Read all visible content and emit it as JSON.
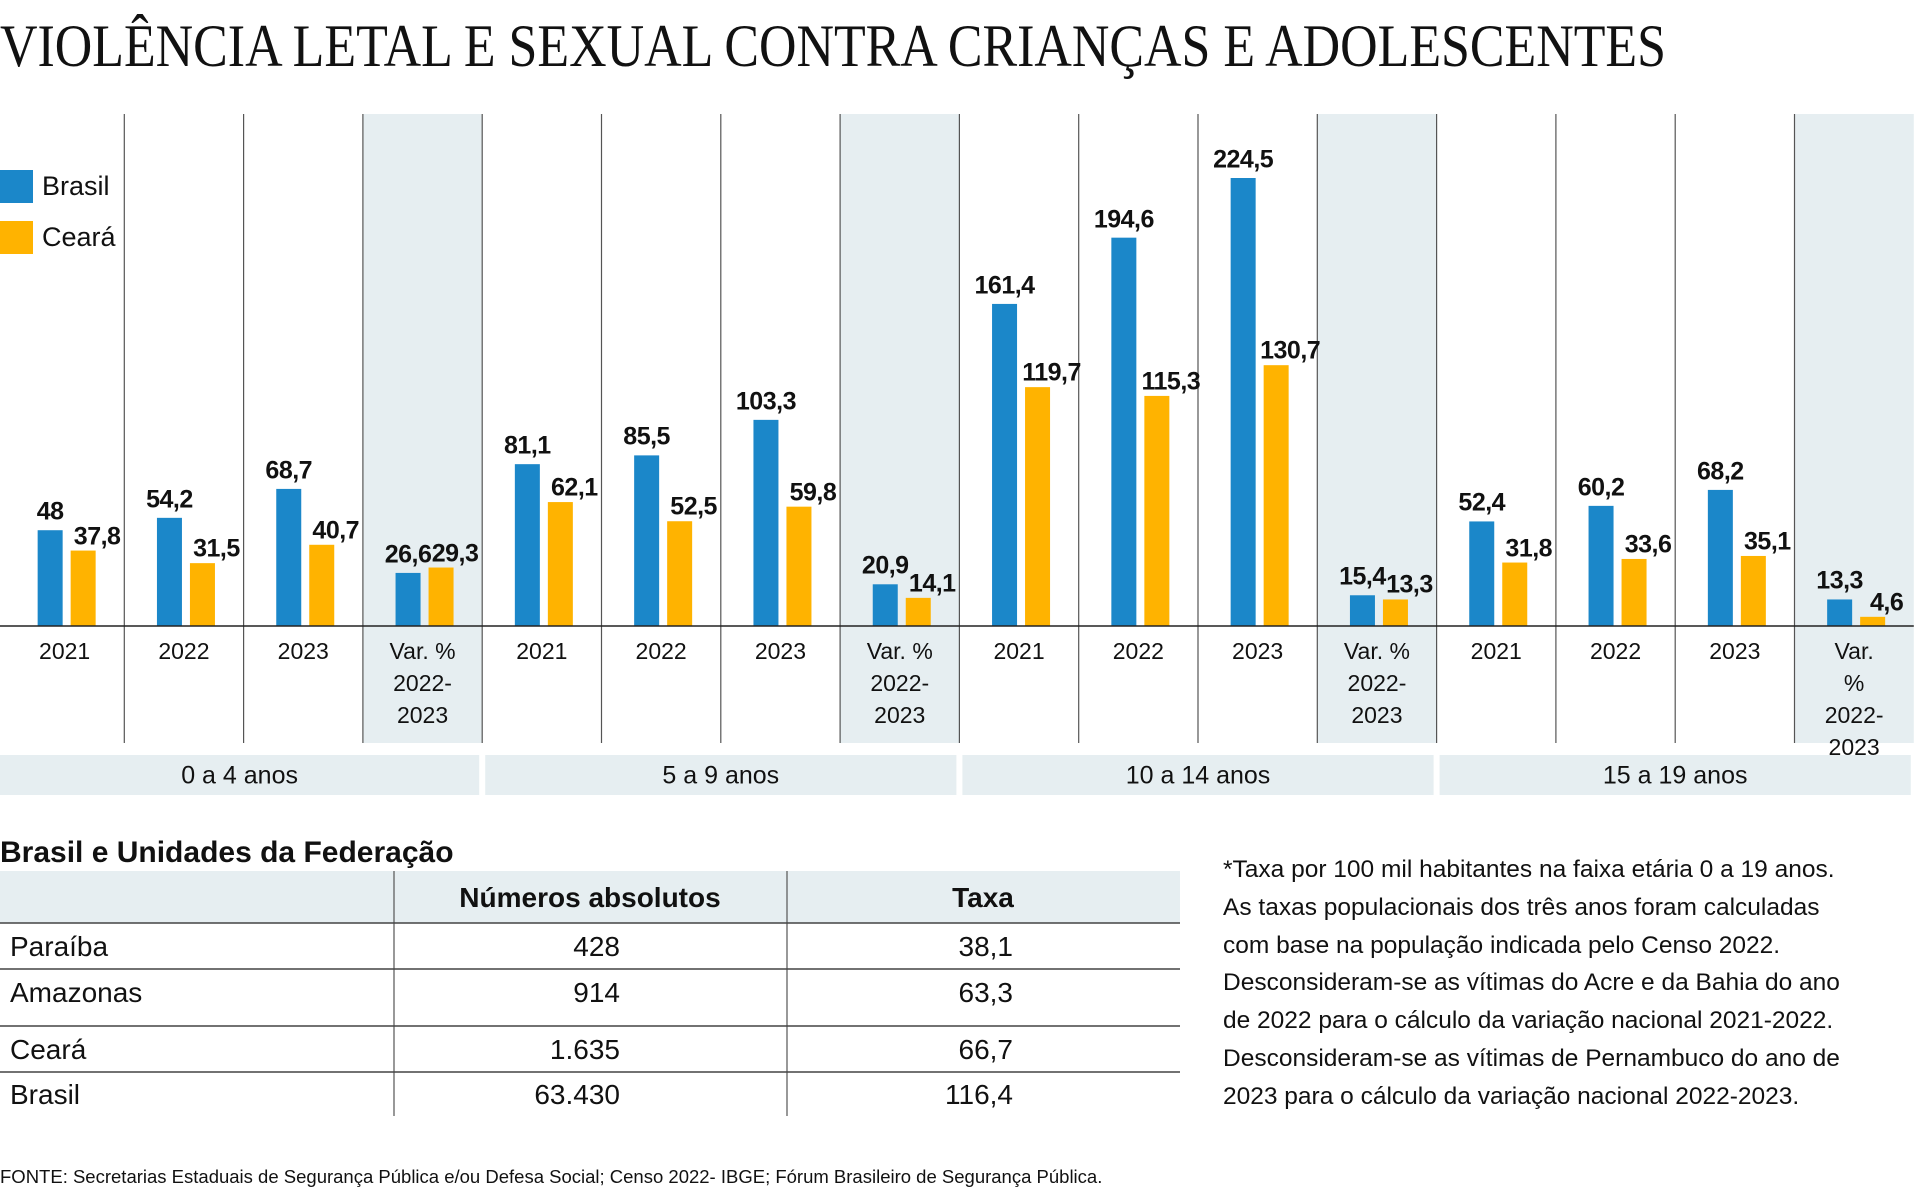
{
  "chart_data": {
    "type": "bar",
    "title": "VIOLÊNCIA LETAL E SEXUAL CONTRA CRIANÇAS E ADOLESCENTES",
    "categories": [
      "2021",
      "2022",
      "2023",
      "Var. %\n2022-\n2023",
      "2021",
      "2022",
      "2023",
      "Var. %\n2022-\n2023",
      "2021",
      "2022",
      "2023",
      "Var. %\n2022-\n2023",
      "2021",
      "2022",
      "2023",
      "Var. %\n2022-\n2023"
    ],
    "groups": [
      "0 a 4 anos",
      "5 a 9 anos",
      "10 a 14 anos",
      "15 a 19 anos"
    ],
    "series": [
      {
        "name": "Brasil",
        "color": "#1b87c9",
        "values": [
          48,
          54.2,
          68.7,
          26.6,
          81.1,
          85.5,
          103.3,
          20.9,
          161.4,
          194.6,
          224.5,
          15.4,
          52.4,
          60.2,
          68.2,
          13.3
        ],
        "value_labels": [
          "48",
          "54,2",
          "68,7",
          "26,6",
          "81,1",
          "85,5",
          "103,3",
          "20,9",
          "161,4",
          "194,6",
          "224,5",
          "15,4",
          "52,4",
          "60,2",
          "68,2",
          "13,3"
        ]
      },
      {
        "name": "Ceará",
        "color": "#ffb300",
        "values": [
          37.8,
          31.5,
          40.7,
          29.3,
          62.1,
          52.5,
          59.8,
          14.1,
          119.7,
          115.3,
          130.7,
          13.3,
          31.8,
          33.6,
          35.1,
          4.6
        ],
        "value_labels": [
          "37,8",
          "31,5",
          "40,7",
          "29,3",
          "62,1",
          "52,5",
          "59,8",
          "14,1",
          "119,7",
          "115,3",
          "130,7",
          "13,3",
          "31,8",
          "33,6",
          "35,1",
          "4,6"
        ]
      }
    ]
  },
  "table": {
    "title": "Brasil e Unidades da Federação",
    "header": [
      "Números absolutos",
      "Taxa"
    ],
    "rows": [
      [
        "Paraíba",
        "428",
        "38,1"
      ],
      [
        "Amazonas",
        "914",
        "63,3"
      ],
      [
        "Ceará",
        "1.635",
        "66,7"
      ],
      [
        "Brasil",
        "63.430",
        "116,4"
      ]
    ]
  },
  "notes": [
    "*Taxa por 100 mil habitantes na faixa etária 0 a 19 anos.",
    "As taxas populacionais dos três anos foram calculadas",
    "com base na população indicada pelo Censo 2022.",
    "Desconsideram-se as vítimas do Acre e da Bahia do ano",
    "de 2022 para o cálculo da variação nacional 2021-2022.",
    "Desconsideram-se as vítimas de Pernambuco do ano de",
    "2023 para o cálculo da variação nacional 2022-2023."
  ],
  "source": "FONTE: Secretarias Estaduais de Segurança Pública e/ou Defesa Social; Censo 2022- IBGE; Fórum Brasileiro de Segurança Pública."
}
